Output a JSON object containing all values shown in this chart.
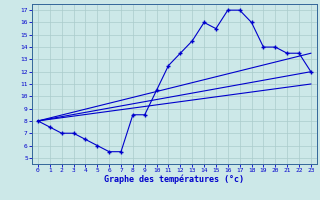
{
  "title": "",
  "xlabel": "Graphe des températures (°c)",
  "bg_color": "#cce8e8",
  "grid_color": "#aacccc",
  "line_color": "#0000cc",
  "spine_color": "#336699",
  "xlim": [
    -0.5,
    23.5
  ],
  "ylim": [
    4.5,
    17.5
  ],
  "xticks": [
    0,
    1,
    2,
    3,
    4,
    5,
    6,
    7,
    8,
    9,
    10,
    11,
    12,
    13,
    14,
    15,
    16,
    17,
    18,
    19,
    20,
    21,
    22,
    23
  ],
  "yticks": [
    5,
    6,
    7,
    8,
    9,
    10,
    11,
    12,
    13,
    14,
    15,
    16,
    17
  ],
  "main_x": [
    0,
    1,
    2,
    3,
    4,
    5,
    6,
    7,
    8,
    9,
    10,
    11,
    12,
    13,
    14,
    15,
    16,
    17,
    18,
    19,
    20,
    21,
    22,
    23
  ],
  "main_y": [
    8.0,
    7.5,
    7.0,
    7.0,
    6.5,
    6.0,
    5.5,
    5.5,
    8.5,
    8.5,
    10.5,
    12.5,
    13.5,
    14.5,
    16.0,
    15.5,
    17.0,
    17.0,
    16.0,
    14.0,
    14.0,
    13.5,
    13.5,
    12.0
  ],
  "line1_x": [
    0,
    23
  ],
  "line1_y": [
    8.0,
    12.0
  ],
  "line2_x": [
    0,
    23
  ],
  "line2_y": [
    8.0,
    11.0
  ],
  "line3_x": [
    0,
    23
  ],
  "line3_y": [
    8.0,
    13.5
  ]
}
